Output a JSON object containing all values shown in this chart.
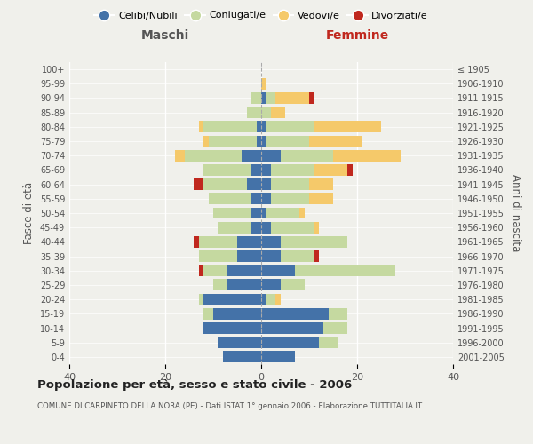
{
  "age_groups": [
    "100+",
    "95-99",
    "90-94",
    "85-89",
    "80-84",
    "75-79",
    "70-74",
    "65-69",
    "60-64",
    "55-59",
    "50-54",
    "45-49",
    "40-44",
    "35-39",
    "30-34",
    "25-29",
    "20-24",
    "15-19",
    "10-14",
    "5-9",
    "0-4"
  ],
  "birth_years": [
    "≤ 1905",
    "1906-1910",
    "1911-1915",
    "1916-1920",
    "1921-1925",
    "1926-1930",
    "1931-1935",
    "1936-1940",
    "1941-1945",
    "1946-1950",
    "1951-1955",
    "1956-1960",
    "1961-1965",
    "1966-1970",
    "1971-1975",
    "1976-1980",
    "1981-1985",
    "1986-1990",
    "1991-1995",
    "1996-2000",
    "2001-2005"
  ],
  "maschi": {
    "celibi": [
      0,
      0,
      0,
      0,
      1,
      1,
      4,
      2,
      3,
      2,
      2,
      2,
      5,
      5,
      7,
      7,
      12,
      10,
      12,
      9,
      8
    ],
    "coniugati": [
      0,
      0,
      2,
      3,
      11,
      10,
      12,
      10,
      9,
      9,
      8,
      7,
      8,
      8,
      5,
      3,
      1,
      2,
      0,
      0,
      0
    ],
    "vedovi": [
      0,
      0,
      0,
      0,
      1,
      1,
      2,
      0,
      0,
      0,
      0,
      0,
      0,
      0,
      0,
      0,
      0,
      0,
      0,
      0,
      0
    ],
    "divorziati": [
      0,
      0,
      0,
      0,
      0,
      0,
      0,
      0,
      2,
      0,
      0,
      0,
      1,
      0,
      1,
      0,
      0,
      0,
      0,
      0,
      0
    ]
  },
  "femmine": {
    "nubili": [
      0,
      0,
      1,
      0,
      1,
      1,
      4,
      2,
      2,
      2,
      1,
      2,
      4,
      4,
      7,
      4,
      1,
      14,
      13,
      12,
      7
    ],
    "coniugate": [
      0,
      0,
      2,
      2,
      10,
      9,
      11,
      9,
      8,
      8,
      7,
      9,
      14,
      7,
      21,
      5,
      2,
      4,
      5,
      4,
      0
    ],
    "vedove": [
      0,
      1,
      7,
      3,
      14,
      11,
      14,
      7,
      5,
      5,
      1,
      1,
      0,
      0,
      0,
      0,
      1,
      0,
      0,
      0,
      0
    ],
    "divorziate": [
      0,
      0,
      1,
      0,
      0,
      0,
      0,
      1,
      0,
      0,
      0,
      0,
      0,
      1,
      0,
      0,
      0,
      0,
      0,
      0,
      0
    ]
  },
  "colors": {
    "celibi_nubili": "#4472a8",
    "coniugati": "#c5d9a0",
    "vedovi": "#f5c96a",
    "divorziati": "#c0281e"
  },
  "xlim": 40,
  "title": "Popolazione per età, sesso e stato civile - 2006",
  "subtitle": "COMUNE DI CARPINETO DELLA NORA (PE) - Dati ISTAT 1° gennaio 2006 - Elaborazione TUTTITALIA.IT",
  "ylabel_left": "Fasce di età",
  "ylabel_right": "Anni di nascita",
  "header_left": "Maschi",
  "header_right": "Femmine",
  "background_color": "#f0f0eb"
}
